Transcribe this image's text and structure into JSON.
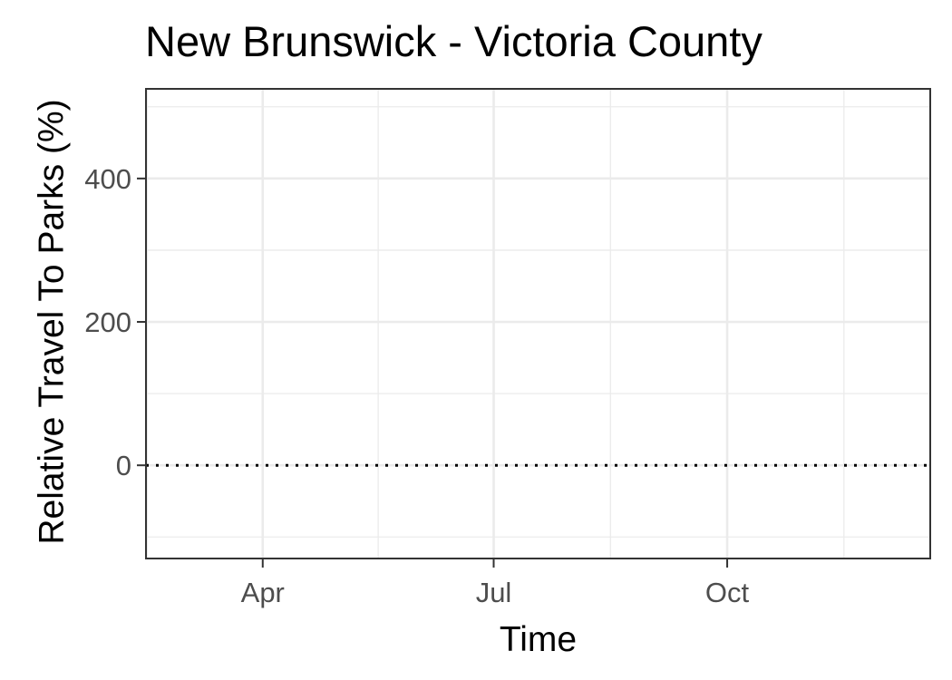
{
  "chart_data": {
    "type": "line",
    "title": "New Brunswick - Victoria County",
    "xlabel": "Time",
    "ylabel": "Relative Travel To Parks (%)",
    "x_ticks": [
      {
        "label": "Apr",
        "date": "2020-04-01"
      },
      {
        "label": "Jul",
        "date": "2020-07-01"
      },
      {
        "label": "Oct",
        "date": "2020-10-01"
      }
    ],
    "xlim": [
      "2020-02-15",
      "2020-12-20"
    ],
    "y_ticks": [
      0,
      200,
      400
    ],
    "ylim": [
      -130,
      525
    ],
    "reference_line": {
      "y": 0,
      "style": "dotted"
    },
    "grid": true,
    "series": []
  }
}
